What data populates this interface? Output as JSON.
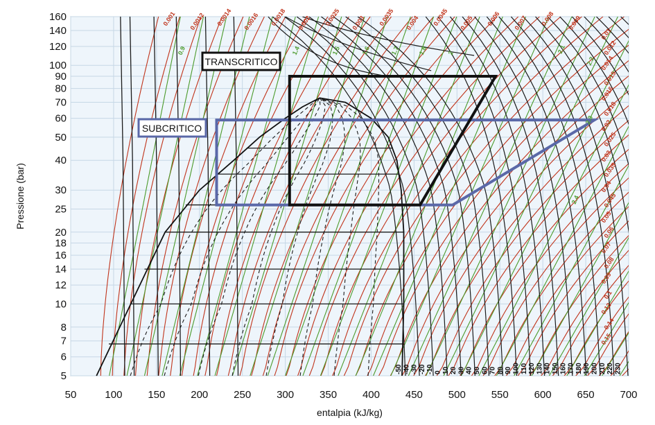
{
  "chart_data": {
    "type": "line",
    "title": "",
    "xlabel": "entalpia (kJ/kg)",
    "ylabel": "Pressione (bar)",
    "xlim": [
      50,
      700
    ],
    "ylim": [
      5,
      160
    ],
    "yscale": "log",
    "grid": true,
    "x_ticks": [
      50,
      100,
      150,
      200,
      250,
      300,
      350,
      400,
      450,
      500,
      550,
      600,
      650,
      700
    ],
    "y_ticks": [
      5,
      6,
      7,
      8,
      10,
      12,
      14,
      16,
      18,
      20,
      25,
      30,
      40,
      50,
      60,
      70,
      80,
      90,
      100,
      120,
      140,
      160
    ],
    "colors": {
      "background": "#eef5fb",
      "isotherm": "#1a1a1a",
      "isochore": "#c0331a",
      "isentrope": "#4a9a2a",
      "subcritico_box": "#5a68a8",
      "transcritico_box": "#111111"
    },
    "saturation_dome": {
      "left": [
        [
          80,
          5
        ],
        [
          120,
          10
        ],
        [
          160,
          20
        ],
        [
          200,
          30
        ],
        [
          240,
          40
        ],
        [
          270,
          50
        ],
        [
          300,
          60
        ],
        [
          320,
          67
        ],
        [
          340,
          73
        ]
      ],
      "right": [
        [
          340,
          73
        ],
        [
          370,
          70
        ],
        [
          400,
          60
        ],
        [
          420,
          50
        ],
        [
          430,
          40
        ],
        [
          435,
          30
        ],
        [
          438,
          20
        ],
        [
          438,
          10
        ],
        [
          436,
          5
        ]
      ]
    },
    "regions": [
      {
        "name": "SUBCRITICO",
        "polygon": [
          [
            220,
            26
          ],
          [
            220,
            59
          ],
          [
            660,
            59
          ],
          [
            495,
            26
          ]
        ]
      },
      {
        "name": "TRANSCRITICO",
        "polygon": [
          [
            305,
            26
          ],
          [
            305,
            90
          ],
          [
            545,
            90
          ],
          [
            457,
            26
          ]
        ]
      }
    ],
    "isochore_labels": [
      "0.001",
      "0.0012",
      "0.0014",
      "0.0016",
      "0.0018",
      "0.002",
      "0.0025",
      "0.003",
      "0.0035",
      "0.004",
      "0.0045",
      "0.005",
      "0.006",
      "0.007",
      "0.008",
      "0.009",
      "0.01",
      "0.012",
      "0.014",
      "0.015",
      "0.016",
      "0.018",
      "0.02",
      "0.025",
      "0.03",
      "0.035",
      "0.04",
      "0.045",
      "0.05",
      "0.06",
      "0.07",
      "0.08",
      "0.09",
      "0.1",
      "0.12",
      "0.14",
      "0.15"
    ],
    "isentrope_labels": [
      "0.9",
      "1.4",
      "1.5",
      "1.6",
      "1.7",
      "1.8",
      "2",
      "2.1",
      "2.2",
      "2.3",
      "2.4"
    ],
    "isotherm_labels": [
      "-50",
      "-40",
      "-30",
      "-20",
      "-10",
      "0",
      "10",
      "20",
      "30",
      "40",
      "50",
      "60",
      "70",
      "80",
      "90",
      "100",
      "110",
      "120",
      "130",
      "140",
      "150",
      "160",
      "170",
      "180",
      "190",
      "200",
      "210",
      "220",
      "230"
    ]
  }
}
